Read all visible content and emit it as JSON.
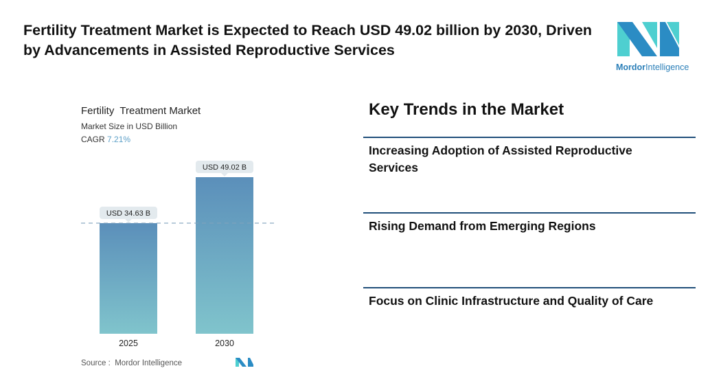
{
  "header": {
    "title": "Fertility Treatment Market is Expected to Reach USD 49.02 billion by 2030, Driven by Advancements in Assisted Reproductive Services",
    "logo_text_1": "Mordor",
    "logo_text_2": "Intelligence"
  },
  "chart_data": {
    "type": "bar",
    "title": "Fertility  Treatment Market",
    "subtitle": "Market Size in USD Billion",
    "cagr_label": "CAGR",
    "cagr_value": "7.21%",
    "categories": [
      "2025",
      "2030"
    ],
    "values": [
      34.63,
      49.02
    ],
    "data_labels": [
      "USD 34.63 B",
      "USD 49.02 B"
    ],
    "ylim": [
      0,
      49.02
    ],
    "reference_line": 34.63,
    "colors": {
      "bar_top": "#5b8fba",
      "bar_bottom": "#80c4cc",
      "label_bg": "#e3eaee"
    }
  },
  "source": "Source :  Mordor Intelligence",
  "trends": {
    "heading": "Key Trends in the Market",
    "items": [
      "Increasing Adoption of Assisted Reproductive Services",
      "Rising Demand from Emerging Regions",
      "Focus on Clinic Infrastructure and Quality of Care"
    ]
  }
}
